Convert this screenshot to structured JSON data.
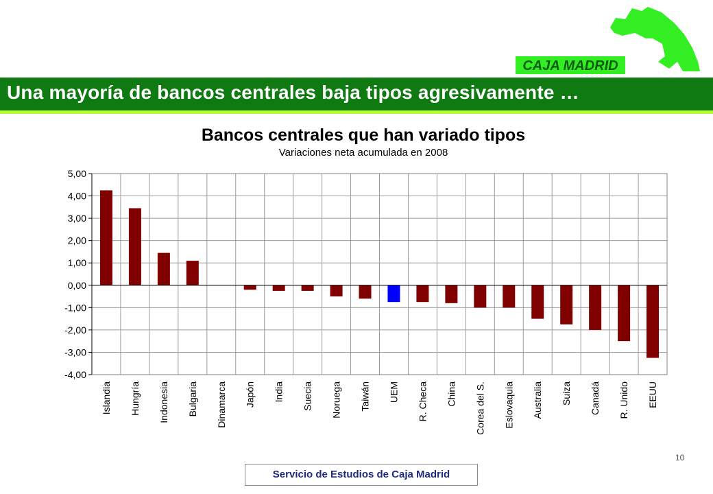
{
  "header": {
    "title": "Una mayoría de bancos centrales baja tipos agresivamente …",
    "logo_text": "CAJA MADRID"
  },
  "colors": {
    "banner": "#0f7a12",
    "banner_stripe": "#b6ff33",
    "logo_green": "#33ee22",
    "bar_default": "#800000",
    "bar_highlight": "#0000ff"
  },
  "chart_data": {
    "type": "bar",
    "title": "Bancos centrales que han variado tipos",
    "subtitle": "Variaciones neta acumulada en 2008",
    "categories": [
      "Islandia",
      "Hungría",
      "Indonesia",
      "Bulgaria",
      "Dinamarca",
      "Japón",
      "India",
      "Suecia",
      "Noruega",
      "Taiwán",
      "UEM",
      "R. Checa",
      "China",
      "Corea del S.",
      "Eslovaquia",
      "Australia",
      "Suiza",
      "Canadá",
      "R. Unido",
      "EEUU"
    ],
    "values": [
      4.25,
      3.45,
      1.45,
      1.1,
      0.0,
      -0.2,
      -0.25,
      -0.25,
      -0.5,
      -0.6,
      -0.75,
      -0.75,
      -0.8,
      -1.0,
      -1.0,
      -1.5,
      -1.75,
      -2.0,
      -2.5,
      -3.25
    ],
    "highlight_category": "UEM",
    "ylim": [
      -4,
      5
    ],
    "yticks": [
      "-4,00",
      "-3,00",
      "-2,00",
      "-1,00",
      "0,00",
      "1,00",
      "2,00",
      "3,00",
      "4,00",
      "5,00"
    ],
    "grid": true,
    "legend": "none"
  },
  "footer": {
    "label": "Servicio de Estudios de Caja Madrid",
    "page_number": "10"
  }
}
